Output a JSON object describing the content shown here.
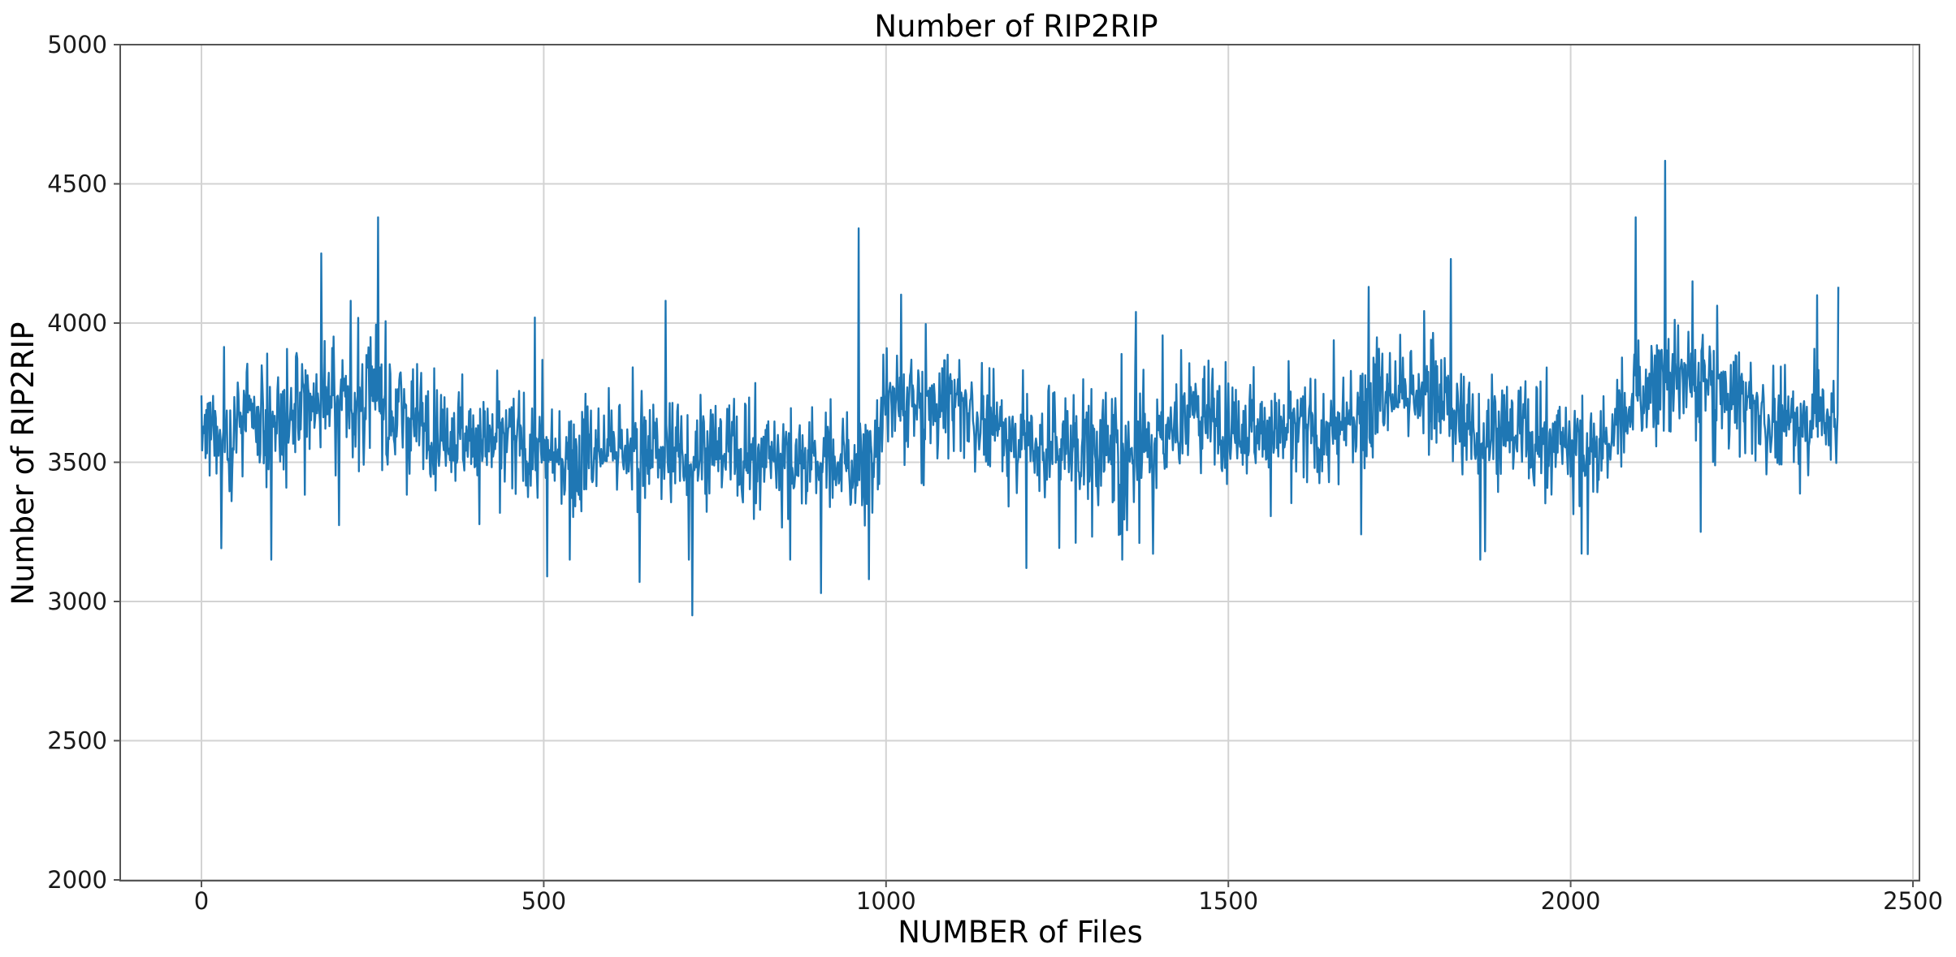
{
  "chart_data": {
    "type": "line",
    "title": "Number of RIP2RIP",
    "xlabel": "NUMBER of Files",
    "ylabel": "Number of RIP2RIP",
    "xlim": [
      -120,
      2510
    ],
    "ylim": [
      2000,
      5000
    ],
    "xticks": [
      0,
      500,
      1000,
      1500,
      2000,
      2500
    ],
    "yticks": [
      2000,
      2500,
      3000,
      3500,
      4000,
      4500,
      5000
    ],
    "xtick_labels": [
      "0",
      "500",
      "1000",
      "1500",
      "2000",
      "2500"
    ],
    "ytick_labels": [
      "2000",
      "2500",
      "3000",
      "3500",
      "4000",
      "4500",
      "5000"
    ],
    "grid": true,
    "legend": null,
    "series": [
      {
        "name": "RIP2RIP",
        "color": "#1f77b4",
        "n_points": 2392,
        "x_range": [
          0,
          2391
        ],
        "rolling_mean_profile": [
          {
            "x": 0,
            "y": 3600
          },
          {
            "x": 100,
            "y": 3640
          },
          {
            "x": 170,
            "y": 3720
          },
          {
            "x": 250,
            "y": 3720
          },
          {
            "x": 350,
            "y": 3620
          },
          {
            "x": 450,
            "y": 3560
          },
          {
            "x": 520,
            "y": 3500
          },
          {
            "x": 600,
            "y": 3560
          },
          {
            "x": 700,
            "y": 3540
          },
          {
            "x": 800,
            "y": 3540
          },
          {
            "x": 900,
            "y": 3520
          },
          {
            "x": 980,
            "y": 3480
          },
          {
            "x": 1000,
            "y": 3700
          },
          {
            "x": 1100,
            "y": 3720
          },
          {
            "x": 1150,
            "y": 3640
          },
          {
            "x": 1250,
            "y": 3560
          },
          {
            "x": 1350,
            "y": 3540
          },
          {
            "x": 1450,
            "y": 3680
          },
          {
            "x": 1550,
            "y": 3620
          },
          {
            "x": 1650,
            "y": 3580
          },
          {
            "x": 1720,
            "y": 3740
          },
          {
            "x": 1800,
            "y": 3760
          },
          {
            "x": 1850,
            "y": 3620
          },
          {
            "x": 1950,
            "y": 3600
          },
          {
            "x": 2050,
            "y": 3560
          },
          {
            "x": 2100,
            "y": 3760
          },
          {
            "x": 2200,
            "y": 3800
          },
          {
            "x": 2300,
            "y": 3640
          },
          {
            "x": 2391,
            "y": 3700
          }
        ],
        "noise_amplitude": 180,
        "notable_points": [
          {
            "x": 0,
            "y": 3740
          },
          {
            "x": 175,
            "y": 4250
          },
          {
            "x": 258,
            "y": 4380
          },
          {
            "x": 218,
            "y": 4080
          },
          {
            "x": 487,
            "y": 4020
          },
          {
            "x": 505,
            "y": 3090
          },
          {
            "x": 640,
            "y": 3070
          },
          {
            "x": 678,
            "y": 4080
          },
          {
            "x": 717,
            "y": 2950
          },
          {
            "x": 905,
            "y": 3030
          },
          {
            "x": 960,
            "y": 4340
          },
          {
            "x": 975,
            "y": 3080
          },
          {
            "x": 1205,
            "y": 3120
          },
          {
            "x": 1365,
            "y": 4040
          },
          {
            "x": 1370,
            "y": 3210
          },
          {
            "x": 1705,
            "y": 4130
          },
          {
            "x": 1825,
            "y": 4230
          },
          {
            "x": 1875,
            "y": 3180
          },
          {
            "x": 2025,
            "y": 3170
          },
          {
            "x": 2095,
            "y": 4380
          },
          {
            "x": 2138,
            "y": 4583
          },
          {
            "x": 2190,
            "y": 3250
          },
          {
            "x": 2360,
            "y": 4100
          },
          {
            "x": 2391,
            "y": 4130
          }
        ]
      }
    ]
  }
}
